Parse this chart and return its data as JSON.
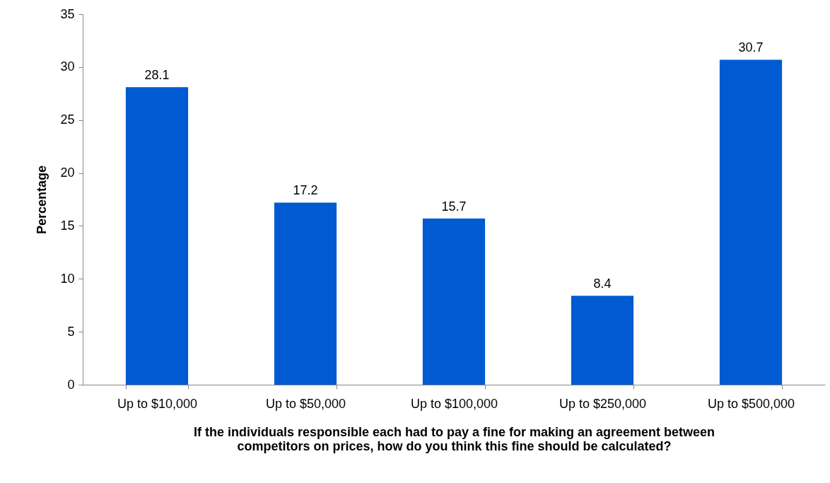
{
  "chart_data": {
    "type": "bar",
    "xlabel": "If the individuals responsible each had to pay a fine for making an agreement between competitors on prices, how do you think this fine should be calculated?",
    "ylabel": "Percentage",
    "categories": [
      "Up to $10,000",
      "Up to $50,000",
      "Up to $100,000",
      "Up to $250,000",
      "Up to $500,000"
    ],
    "values": [
      28.1,
      17.2,
      15.7,
      8.4,
      30.7
    ],
    "color": "#005bd3",
    "ylim": [
      0,
      35
    ],
    "yticks": [
      0,
      5,
      10,
      15,
      20,
      25,
      30,
      35
    ],
    "grid": false,
    "data_labels": true
  }
}
